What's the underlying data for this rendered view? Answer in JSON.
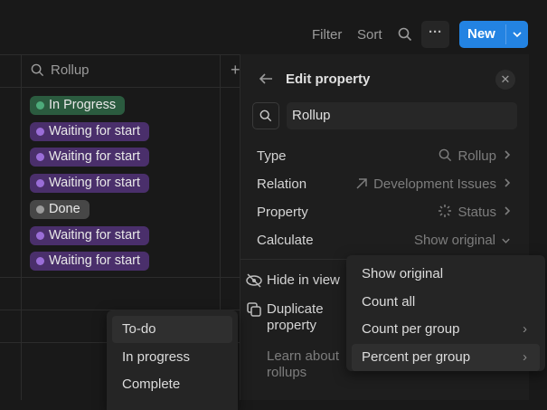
{
  "toolbar": {
    "filter": "Filter",
    "sort": "Sort",
    "more": "···",
    "new": "New",
    "new_dropdown": "⌄"
  },
  "table": {
    "column_header": "Rollup",
    "add_column": "+",
    "tags": [
      {
        "label": "In Progress",
        "bg": "#2b5b3f",
        "dot": "#4dab7a"
      },
      {
        "label": "Waiting for start",
        "bg": "#4a2f6b",
        "dot": "#9a6dd7"
      },
      {
        "label": "Waiting for start",
        "bg": "#4a2f6b",
        "dot": "#9a6dd7"
      },
      {
        "label": "Waiting for start",
        "bg": "#4a2f6b",
        "dot": "#9a6dd7"
      },
      {
        "label": "Done",
        "bg": "#474747",
        "dot": "#9b9b9b"
      },
      {
        "label": "Waiting for start",
        "bg": "#4a2f6b",
        "dot": "#9a6dd7"
      },
      {
        "label": "Waiting for start",
        "bg": "#4a2f6b",
        "dot": "#9a6dd7"
      }
    ]
  },
  "panel": {
    "title": "Edit property",
    "name_value": "Rollup",
    "rows": [
      {
        "label": "Type",
        "value": "Rollup",
        "icon": "search-icon"
      },
      {
        "label": "Relation",
        "value": "Development Issues",
        "icon": "arrow-up-right-icon"
      },
      {
        "label": "Property",
        "value": "Status",
        "icon": "status-icon"
      },
      {
        "label": "Calculate",
        "value": "Show original",
        "icon": ""
      }
    ],
    "hide": "Hide in view",
    "duplicate": "Duplicate property",
    "learn": "Learn about rollups"
  },
  "calc_menu": {
    "items": [
      "Show original",
      "Count all",
      "Count per group",
      "Percent per group"
    ]
  },
  "sub_menu": {
    "items": [
      "To-do",
      "In progress",
      "Complete"
    ]
  },
  "colors": {
    "accent": "#2383e2",
    "bg": "#191919"
  }
}
